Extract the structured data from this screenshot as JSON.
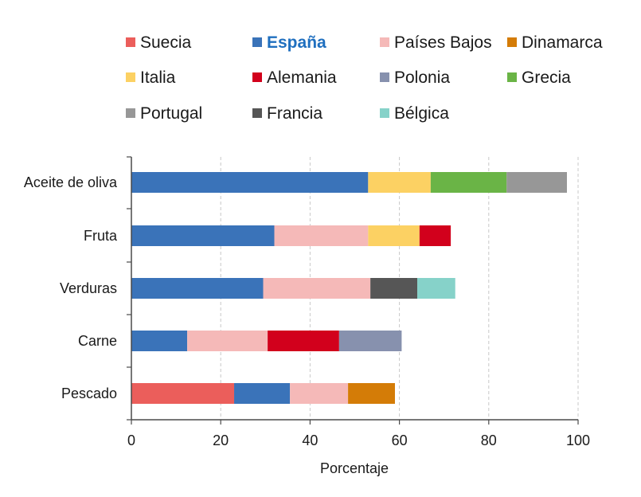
{
  "chart_data": {
    "type": "bar",
    "orientation": "horizontal",
    "stacked": true,
    "title": "",
    "xlabel": "Porcentaje",
    "ylabel": "",
    "xlim": [
      0,
      100
    ],
    "xticks": [
      0,
      20,
      40,
      60,
      80,
      100
    ],
    "grid": true,
    "legend_position": "top",
    "highlighted_series": "España",
    "categories": [
      "Aceite de oliva",
      "Fruta",
      "Verduras",
      "Carne",
      "Pescado"
    ],
    "series": [
      {
        "name": "Suecia",
        "color": "#eb5e5b",
        "values": [
          0,
          0,
          0,
          0,
          23
        ]
      },
      {
        "name": "España",
        "color": "#3a73b9",
        "values": [
          53,
          32,
          29.5,
          12.5,
          12.5
        ]
      },
      {
        "name": "Países Bajos",
        "color": "#f5b9b8",
        "values": [
          0,
          21,
          24,
          18,
          13
        ]
      },
      {
        "name": "Dinamarca",
        "color": "#d47c07",
        "values": [
          0,
          0,
          0,
          0,
          10.5
        ]
      },
      {
        "name": "Italia",
        "color": "#fcd163",
        "values": [
          14,
          11.5,
          0,
          0,
          0
        ]
      },
      {
        "name": "Alemania",
        "color": "#d2001c",
        "values": [
          0,
          7,
          0,
          16,
          0
        ]
      },
      {
        "name": "Polonia",
        "color": "#8791ae",
        "values": [
          0,
          0,
          0,
          14,
          0
        ]
      },
      {
        "name": "Grecia",
        "color": "#6ab446",
        "values": [
          17,
          0,
          0,
          0,
          0
        ]
      },
      {
        "name": "Portugal",
        "color": "#979797",
        "values": [
          13.5,
          0,
          0,
          0,
          0
        ]
      },
      {
        "name": "Francia",
        "color": "#565656",
        "values": [
          0,
          0,
          10.5,
          0,
          0
        ]
      },
      {
        "name": "Bélgica",
        "color": "#86d2c9",
        "values": [
          0,
          0,
          8.5,
          0,
          0
        ]
      }
    ]
  }
}
